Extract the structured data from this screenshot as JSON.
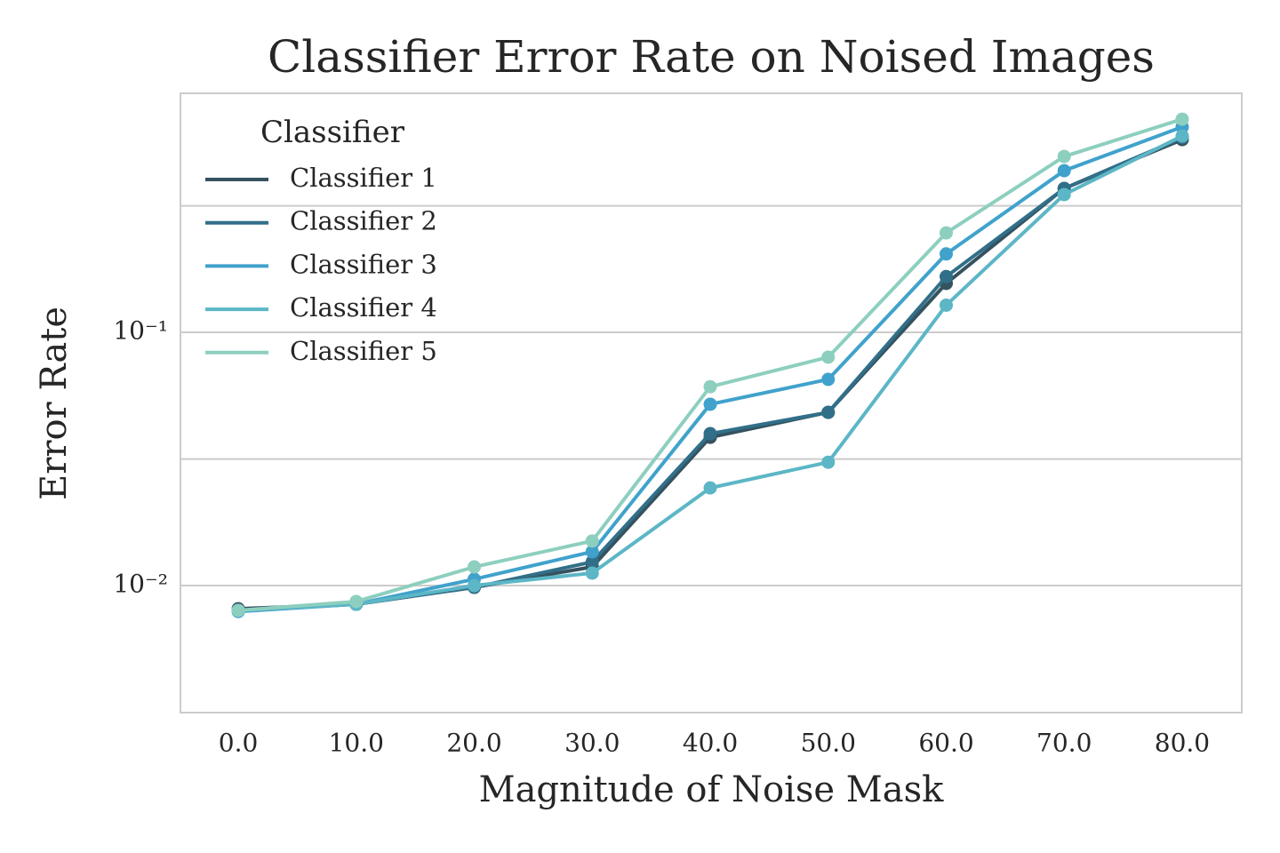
{
  "chart_data": {
    "type": "line",
    "title": "Classifier Error Rate on Noised Images",
    "x_label": "Magnitude of Noise Mask",
    "y_label": "Error Rate",
    "legend_title": "Classifier",
    "legend": "upper left",
    "log_y": true,
    "grid": true,
    "x": [
      0,
      10,
      20,
      30,
      40,
      50,
      60,
      70,
      80
    ],
    "xlim": [
      -4.9,
      85.05
    ],
    "xticks": [
      {
        "value": 0,
        "label": "0.0"
      },
      {
        "value": 10,
        "label": "10.0"
      },
      {
        "value": 20,
        "label": "20.0"
      },
      {
        "value": 30,
        "label": "30.0"
      },
      {
        "value": 40,
        "label": "40.0"
      },
      {
        "value": 50,
        "label": "50.0"
      },
      {
        "value": 60,
        "label": "60.0"
      },
      {
        "value": 70,
        "label": "70.0"
      },
      {
        "value": 80,
        "label": "80.0"
      }
    ],
    "ylim": [
      0.00315,
      0.879
    ],
    "yticks": [
      {
        "value": 0.01,
        "label": "10⁻²"
      },
      {
        "value": 0.1,
        "label": "10⁻¹"
      }
    ],
    "ygrid": [
      0.0316,
      0.316
    ],
    "series": [
      {
        "name": "Classifier 1",
        "color": "#35525f",
        "values": [
          0.0081,
          0.00844,
          0.00984,
          0.01185,
          0.0385,
          0.0483,
          0.156,
          0.37,
          0.577
        ]
      },
      {
        "name": "Classifier 2",
        "color": "#316f89",
        "values": [
          0.00798,
          0.00844,
          0.00984,
          0.0124,
          0.0398,
          0.0483,
          0.166,
          0.37,
          0.587
        ]
      },
      {
        "name": "Classifier 3",
        "color": "#40a2cc",
        "values": [
          0.0079,
          0.00844,
          0.0106,
          0.0136,
          0.052,
          0.0652,
          0.204,
          0.435,
          0.647
        ]
      },
      {
        "name": "Classifier 4",
        "color": "#5cb6c6",
        "values": [
          0.00798,
          0.00844,
          0.01,
          0.0112,
          0.0243,
          0.0307,
          0.128,
          0.35,
          0.596
        ]
      },
      {
        "name": "Classifier 5",
        "color": "#8dcfbf",
        "values": [
          0.00798,
          0.00865,
          0.01185,
          0.015,
          0.061,
          0.0798,
          0.247,
          0.495,
          0.695
        ]
      }
    ]
  }
}
